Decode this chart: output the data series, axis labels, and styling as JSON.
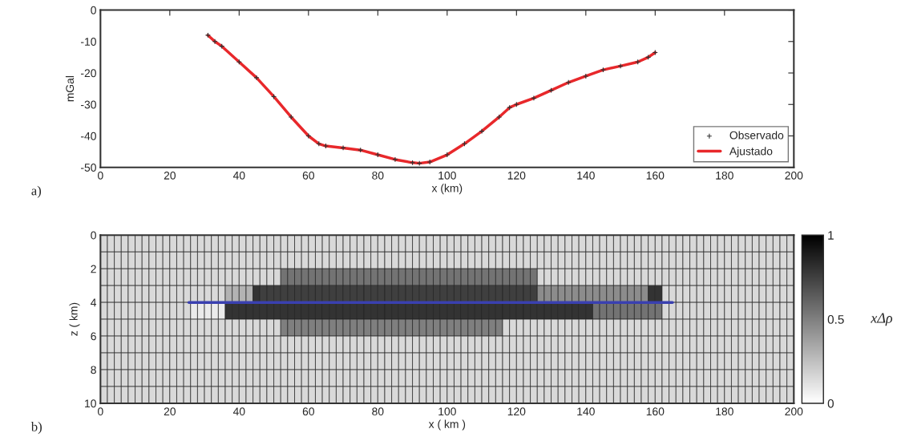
{
  "chart_data": [
    {
      "type": "line",
      "xlabel": "x (km)",
      "ylabel": "mGal",
      "xlim": [
        0,
        200
      ],
      "xticks": [
        0,
        20,
        40,
        60,
        80,
        100,
        120,
        140,
        160,
        180,
        200
      ],
      "ylim": [
        -50,
        0
      ],
      "yticks": [
        -50,
        -40,
        -30,
        -20,
        -10,
        0
      ],
      "legend": "bottom right",
      "annotations": [
        "a)"
      ],
      "series": [
        {
          "name": "Observado",
          "type": "scatter",
          "marker": "cross",
          "color": "#303030",
          "x": [
            31,
            33,
            35,
            40,
            45,
            50,
            55,
            60,
            63,
            65,
            70,
            75,
            80,
            85,
            90,
            92,
            95,
            100,
            105,
            110,
            115,
            118,
            120,
            125,
            130,
            135,
            140,
            145,
            150,
            155,
            158,
            160
          ],
          "values": [
            -8,
            -10,
            -11.5,
            -16.5,
            -21.5,
            -27.5,
            -34,
            -40,
            -42.5,
            -43.2,
            -43.8,
            -44.5,
            -46,
            -47.5,
            -48.5,
            -48.7,
            -48.3,
            -46,
            -42.5,
            -38.5,
            -34,
            -31,
            -30,
            -28,
            -25.5,
            -23,
            -21,
            -19,
            -17.8,
            -16.5,
            -15,
            -13.5
          ]
        },
        {
          "name": "Ajustado",
          "type": "line",
          "color": "#e8282b",
          "x": [
            31,
            33,
            35,
            40,
            45,
            50,
            55,
            60,
            63,
            65,
            70,
            75,
            80,
            85,
            90,
            92,
            95,
            100,
            105,
            110,
            115,
            118,
            120,
            125,
            130,
            135,
            140,
            145,
            150,
            155,
            158,
            160
          ],
          "values": [
            -8,
            -10,
            -11.5,
            -16.5,
            -21.5,
            -27.5,
            -34,
            -40,
            -42.5,
            -43.2,
            -43.8,
            -44.5,
            -46,
            -47.5,
            -48.5,
            -48.7,
            -48.3,
            -46,
            -42.5,
            -38.5,
            -34,
            -31,
            -30,
            -28,
            -25.5,
            -23,
            -21,
            -19,
            -17.8,
            -16.5,
            -15,
            -13.5
          ]
        }
      ]
    },
    {
      "type": "heatmap",
      "xlabel": "x ( km )",
      "ylabel": "z ( km)",
      "clabel": "xΔρ",
      "xlim": [
        0,
        200
      ],
      "xticks": [
        0,
        20,
        40,
        60,
        80,
        100,
        120,
        140,
        160,
        180,
        200
      ],
      "ylim": [
        10,
        0
      ],
      "yticks": [
        0,
        2,
        4,
        6,
        8,
        10
      ],
      "clim": [
        0,
        1
      ],
      "cticks": [
        0,
        0.5,
        1
      ],
      "annotations": [
        "b)"
      ],
      "x": [
        1,
        3,
        5,
        7,
        9,
        11,
        13,
        15,
        17,
        19,
        21,
        23,
        25,
        27,
        29,
        31,
        33,
        35,
        37,
        39,
        41,
        43,
        45,
        47,
        49,
        51,
        53,
        55,
        57,
        59,
        61,
        63,
        65,
        67,
        69,
        71,
        73,
        75,
        77,
        79,
        81,
        83,
        85,
        87,
        89,
        91,
        93,
        95,
        97,
        99,
        101,
        103,
        105,
        107,
        109,
        111,
        113,
        115,
        117,
        119,
        121,
        123,
        125,
        127,
        129,
        131,
        133,
        135,
        137,
        139,
        141,
        143,
        145,
        147,
        149,
        151,
        153,
        155,
        157,
        159,
        161,
        163,
        165,
        167,
        169,
        171,
        173,
        175,
        177,
        179,
        181,
        183,
        185,
        187,
        189,
        191,
        193,
        195,
        197,
        199
      ],
      "y": [
        0.5,
        1.5,
        2.5,
        3.5,
        4.5,
        5.5,
        6.5,
        7.5,
        8.5,
        9.5
      ],
      "cells": [
        [
          0.15,
          0.15,
          0.15,
          0.15,
          0.15,
          0.15,
          0.15,
          0.15,
          0.15,
          0.15,
          0.15,
          0.15,
          0.15,
          0.15,
          0.15,
          0.15,
          0.15,
          0.15,
          0.15,
          0.15,
          0.15,
          0.15,
          0.15,
          0.15,
          0.15,
          0.15,
          0.15,
          0.15,
          0.15,
          0.15,
          0.15,
          0.15,
          0.15,
          0.15,
          0.15,
          0.15,
          0.15,
          0.15,
          0.15,
          0.15,
          0.15,
          0.15,
          0.15,
          0.15,
          0.15,
          0.15,
          0.15,
          0.15,
          0.15,
          0.15,
          0.15,
          0.15,
          0.15,
          0.15,
          0.15,
          0.15,
          0.15,
          0.15,
          0.15,
          0.15,
          0.15,
          0.15,
          0.15,
          0.15,
          0.15,
          0.15,
          0.15,
          0.15,
          0.15,
          0.15,
          0.15,
          0.15,
          0.15,
          0.15,
          0.15,
          0.15,
          0.15,
          0.15,
          0.15,
          0.15,
          0.15,
          0.15,
          0.15,
          0.15,
          0.15,
          0.15,
          0.15,
          0.15,
          0.15,
          0.15,
          0.15,
          0.15,
          0.15,
          0.15,
          0.15,
          0.15,
          0.15,
          0.15,
          0.15,
          0.15
        ],
        [
          0.15,
          0.15,
          0.15,
          0.15,
          0.15,
          0.15,
          0.15,
          0.15,
          0.15,
          0.15,
          0.15,
          0.15,
          0.15,
          0.15,
          0.15,
          0.15,
          0.15,
          0.15,
          0.15,
          0.15,
          0.15,
          0.15,
          0.15,
          0.15,
          0.15,
          0.15,
          0.15,
          0.15,
          0.15,
          0.15,
          0.15,
          0.15,
          0.15,
          0.15,
          0.15,
          0.15,
          0.15,
          0.15,
          0.15,
          0.15,
          0.15,
          0.15,
          0.15,
          0.15,
          0.15,
          0.15,
          0.15,
          0.15,
          0.15,
          0.15,
          0.15,
          0.15,
          0.15,
          0.15,
          0.15,
          0.15,
          0.15,
          0.15,
          0.15,
          0.15,
          0.15,
          0.15,
          0.15,
          0.15,
          0.15,
          0.15,
          0.15,
          0.15,
          0.15,
          0.15,
          0.15,
          0.15,
          0.15,
          0.15,
          0.15,
          0.15,
          0.15,
          0.15,
          0.15,
          0.15,
          0.15,
          0.15,
          0.15,
          0.15,
          0.15,
          0.15,
          0.15,
          0.15,
          0.15,
          0.15,
          0.15,
          0.15,
          0.15,
          0.15,
          0.15,
          0.15,
          0.15,
          0.15,
          0.15,
          0.15
        ],
        [
          0.15,
          0.15,
          0.15,
          0.15,
          0.15,
          0.15,
          0.15,
          0.15,
          0.15,
          0.15,
          0.15,
          0.15,
          0.15,
          0.15,
          0.15,
          0.15,
          0.15,
          0.15,
          0.15,
          0.15,
          0.15,
          0.15,
          0.15,
          0.15,
          0.15,
          0.15,
          0.55,
          0.55,
          0.55,
          0.55,
          0.55,
          0.55,
          0.55,
          0.55,
          0.55,
          0.55,
          0.55,
          0.55,
          0.55,
          0.55,
          0.55,
          0.55,
          0.55,
          0.55,
          0.55,
          0.55,
          0.55,
          0.55,
          0.55,
          0.55,
          0.55,
          0.55,
          0.55,
          0.55,
          0.55,
          0.55,
          0.55,
          0.55,
          0.55,
          0.55,
          0.55,
          0.55,
          0.55,
          0.15,
          0.15,
          0.15,
          0.15,
          0.15,
          0.15,
          0.15,
          0.15,
          0.15,
          0.15,
          0.15,
          0.15,
          0.15,
          0.15,
          0.15,
          0.15,
          0.15,
          0.15,
          0.15,
          0.15,
          0.15,
          0.15,
          0.15,
          0.15,
          0.15,
          0.15,
          0.15,
          0.15,
          0.15,
          0.15,
          0.15,
          0.15,
          0.15,
          0.15,
          0.15,
          0.15,
          0.15
        ],
        [
          0.15,
          0.15,
          0.15,
          0.15,
          0.15,
          0.15,
          0.15,
          0.15,
          0.15,
          0.15,
          0.15,
          0.15,
          0.15,
          0.15,
          0.15,
          0.15,
          0.15,
          0.15,
          0.3,
          0.3,
          0.3,
          0.3,
          0.8,
          0.75,
          0.75,
          0.75,
          0.75,
          0.75,
          0.75,
          0.75,
          0.75,
          0.75,
          0.75,
          0.75,
          0.75,
          0.75,
          0.75,
          0.75,
          0.75,
          0.75,
          0.75,
          0.75,
          0.75,
          0.75,
          0.75,
          0.75,
          0.75,
          0.75,
          0.75,
          0.75,
          0.75,
          0.75,
          0.75,
          0.75,
          0.75,
          0.75,
          0.75,
          0.75,
          0.75,
          0.75,
          0.75,
          0.75,
          0.75,
          0.45,
          0.45,
          0.45,
          0.45,
          0.45,
          0.45,
          0.45,
          0.45,
          0.45,
          0.45,
          0.45,
          0.45,
          0.45,
          0.45,
          0.45,
          0.45,
          0.8,
          0.8,
          0.15,
          0.15,
          0.15,
          0.15,
          0.15,
          0.15,
          0.15,
          0.15,
          0.15,
          0.15,
          0.15,
          0.15,
          0.15,
          0.15,
          0.15,
          0.15,
          0.15,
          0.15,
          0.15
        ],
        [
          0.15,
          0.15,
          0.15,
          0.15,
          0.15,
          0.15,
          0.15,
          0.15,
          0.15,
          0.15,
          0.15,
          0.15,
          0.15,
          0.08,
          0.08,
          0.08,
          0.08,
          0.08,
          0.8,
          0.8,
          0.8,
          0.8,
          0.8,
          0.8,
          0.8,
          0.8,
          0.8,
          0.8,
          0.8,
          0.8,
          0.8,
          0.8,
          0.8,
          0.8,
          0.8,
          0.8,
          0.8,
          0.8,
          0.8,
          0.8,
          0.8,
          0.8,
          0.8,
          0.8,
          0.8,
          0.8,
          0.8,
          0.8,
          0.8,
          0.8,
          0.8,
          0.8,
          0.8,
          0.8,
          0.8,
          0.8,
          0.8,
          0.8,
          0.8,
          0.8,
          0.8,
          0.8,
          0.8,
          0.8,
          0.8,
          0.8,
          0.8,
          0.8,
          0.8,
          0.8,
          0.8,
          0.55,
          0.55,
          0.55,
          0.55,
          0.55,
          0.55,
          0.55,
          0.55,
          0.55,
          0.55,
          0.15,
          0.15,
          0.15,
          0.15,
          0.15,
          0.15,
          0.15,
          0.15,
          0.15,
          0.15,
          0.15,
          0.15,
          0.15,
          0.15,
          0.15,
          0.15,
          0.15,
          0.15,
          0.15
        ],
        [
          0.15,
          0.15,
          0.15,
          0.15,
          0.15,
          0.15,
          0.15,
          0.15,
          0.15,
          0.15,
          0.15,
          0.15,
          0.15,
          0.15,
          0.15,
          0.15,
          0.15,
          0.15,
          0.15,
          0.15,
          0.15,
          0.15,
          0.15,
          0.15,
          0.15,
          0.15,
          0.5,
          0.5,
          0.5,
          0.5,
          0.5,
          0.5,
          0.5,
          0.5,
          0.5,
          0.5,
          0.5,
          0.5,
          0.5,
          0.5,
          0.5,
          0.5,
          0.5,
          0.5,
          0.5,
          0.5,
          0.5,
          0.5,
          0.5,
          0.5,
          0.5,
          0.5,
          0.5,
          0.5,
          0.5,
          0.5,
          0.5,
          0.5,
          0.15,
          0.15,
          0.15,
          0.15,
          0.15,
          0.15,
          0.15,
          0.15,
          0.15,
          0.15,
          0.15,
          0.15,
          0.15,
          0.15,
          0.15,
          0.15,
          0.15,
          0.15,
          0.15,
          0.15,
          0.15,
          0.15,
          0.15,
          0.15,
          0.15,
          0.15,
          0.15,
          0.15,
          0.15,
          0.15,
          0.15,
          0.15,
          0.15,
          0.15,
          0.15,
          0.15,
          0.15,
          0.15,
          0.15,
          0.15,
          0.15,
          0.15
        ],
        [
          0.15,
          0.15,
          0.15,
          0.15,
          0.15,
          0.15,
          0.15,
          0.15,
          0.15,
          0.15,
          0.15,
          0.15,
          0.15,
          0.15,
          0.15,
          0.15,
          0.15,
          0.15,
          0.15,
          0.15,
          0.15,
          0.15,
          0.15,
          0.15,
          0.15,
          0.15,
          0.15,
          0.15,
          0.15,
          0.15,
          0.15,
          0.15,
          0.15,
          0.15,
          0.15,
          0.15,
          0.15,
          0.15,
          0.15,
          0.15,
          0.15,
          0.15,
          0.15,
          0.15,
          0.15,
          0.15,
          0.15,
          0.15,
          0.15,
          0.15,
          0.15,
          0.15,
          0.15,
          0.15,
          0.15,
          0.15,
          0.15,
          0.15,
          0.15,
          0.15,
          0.15,
          0.15,
          0.15,
          0.15,
          0.15,
          0.15,
          0.15,
          0.15,
          0.15,
          0.15,
          0.15,
          0.15,
          0.15,
          0.15,
          0.15,
          0.15,
          0.15,
          0.15,
          0.15,
          0.15,
          0.15,
          0.15,
          0.15,
          0.15,
          0.15,
          0.15,
          0.15,
          0.15,
          0.15,
          0.15,
          0.15,
          0.15,
          0.15,
          0.15,
          0.15,
          0.15,
          0.15,
          0.15,
          0.15,
          0.15
        ],
        [
          0.15,
          0.15,
          0.15,
          0.15,
          0.15,
          0.15,
          0.15,
          0.15,
          0.15,
          0.15,
          0.15,
          0.15,
          0.15,
          0.15,
          0.15,
          0.15,
          0.15,
          0.15,
          0.15,
          0.15,
          0.15,
          0.15,
          0.15,
          0.15,
          0.15,
          0.15,
          0.15,
          0.15,
          0.15,
          0.15,
          0.15,
          0.15,
          0.15,
          0.15,
          0.15,
          0.15,
          0.15,
          0.15,
          0.15,
          0.15,
          0.15,
          0.15,
          0.15,
          0.15,
          0.15,
          0.15,
          0.15,
          0.15,
          0.15,
          0.15,
          0.15,
          0.15,
          0.15,
          0.15,
          0.15,
          0.15,
          0.15,
          0.15,
          0.15,
          0.15,
          0.15,
          0.15,
          0.15,
          0.15,
          0.15,
          0.15,
          0.15,
          0.15,
          0.15,
          0.15,
          0.15,
          0.15,
          0.15,
          0.15,
          0.15,
          0.15,
          0.15,
          0.15,
          0.15,
          0.15,
          0.15,
          0.15,
          0.15,
          0.15,
          0.15,
          0.15,
          0.15,
          0.15,
          0.15,
          0.15,
          0.15,
          0.15,
          0.15,
          0.15,
          0.15,
          0.15,
          0.15,
          0.15,
          0.15,
          0.15
        ],
        [
          0.15,
          0.15,
          0.15,
          0.15,
          0.15,
          0.15,
          0.15,
          0.15,
          0.15,
          0.15,
          0.15,
          0.15,
          0.15,
          0.15,
          0.15,
          0.15,
          0.15,
          0.15,
          0.15,
          0.15,
          0.15,
          0.15,
          0.15,
          0.15,
          0.15,
          0.15,
          0.15,
          0.15,
          0.15,
          0.15,
          0.15,
          0.15,
          0.15,
          0.15,
          0.15,
          0.15,
          0.15,
          0.15,
          0.15,
          0.15,
          0.15,
          0.15,
          0.15,
          0.15,
          0.15,
          0.15,
          0.15,
          0.15,
          0.15,
          0.15,
          0.15,
          0.15,
          0.15,
          0.15,
          0.15,
          0.15,
          0.15,
          0.15,
          0.15,
          0.15,
          0.15,
          0.15,
          0.15,
          0.15,
          0.15,
          0.15,
          0.15,
          0.15,
          0.15,
          0.15,
          0.15,
          0.15,
          0.15,
          0.15,
          0.15,
          0.15,
          0.15,
          0.15,
          0.15,
          0.15,
          0.15,
          0.15,
          0.15,
          0.15,
          0.15,
          0.15,
          0.15,
          0.15,
          0.15,
          0.15,
          0.15,
          0.15,
          0.15,
          0.15,
          0.15,
          0.15,
          0.15,
          0.15,
          0.15,
          0.15
        ],
        [
          0.15,
          0.15,
          0.15,
          0.15,
          0.15,
          0.15,
          0.15,
          0.15,
          0.15,
          0.15,
          0.15,
          0.15,
          0.15,
          0.15,
          0.15,
          0.15,
          0.15,
          0.15,
          0.15,
          0.15,
          0.15,
          0.15,
          0.15,
          0.15,
          0.15,
          0.15,
          0.15,
          0.15,
          0.15,
          0.15,
          0.15,
          0.15,
          0.15,
          0.15,
          0.15,
          0.15,
          0.15,
          0.15,
          0.15,
          0.15,
          0.15,
          0.15,
          0.15,
          0.15,
          0.15,
          0.15,
          0.15,
          0.15,
          0.15,
          0.15,
          0.15,
          0.15,
          0.15,
          0.15,
          0.15,
          0.15,
          0.15,
          0.15,
          0.15,
          0.15,
          0.15,
          0.15,
          0.15,
          0.15,
          0.15,
          0.15,
          0.15,
          0.15,
          0.15,
          0.15,
          0.15,
          0.15,
          0.15,
          0.15,
          0.15,
          0.15,
          0.15,
          0.15,
          0.15,
          0.15,
          0.15,
          0.15,
          0.15,
          0.15,
          0.15,
          0.15,
          0.15,
          0.15,
          0.15,
          0.15,
          0.15,
          0.15,
          0.15,
          0.15,
          0.15,
          0.15,
          0.15,
          0.15,
          0.15,
          0.15
        ]
      ],
      "series": [
        {
          "type": "line",
          "color": "#3a40b0",
          "x": [
            25.5,
            165
          ],
          "values": [
            4,
            4
          ]
        }
      ]
    }
  ]
}
